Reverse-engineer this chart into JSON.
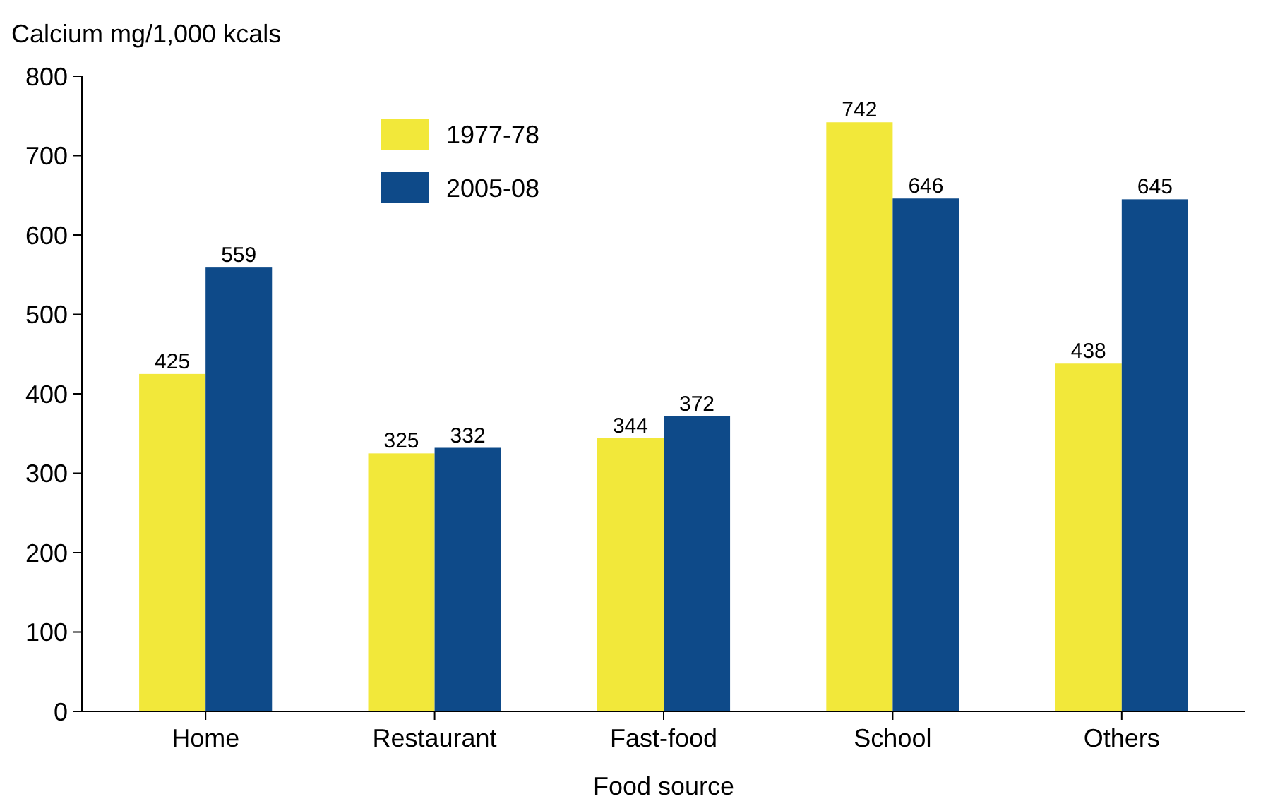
{
  "chart_data": {
    "type": "bar",
    "ylabel": "Calcium mg/1,000 kcals",
    "xlabel": "Food source",
    "categories": [
      "Home",
      "Restaurant",
      "Fast-food",
      "School",
      "Others"
    ],
    "series": [
      {
        "name": "1977-78",
        "color": "#f2e83a",
        "values": [
          425,
          325,
          344,
          742,
          438
        ]
      },
      {
        "name": "2005-08",
        "color": "#0e4a89",
        "values": [
          559,
          332,
          372,
          646,
          645
        ]
      }
    ],
    "ylim": [
      0,
      800
    ],
    "yticks": [
      0,
      100,
      200,
      300,
      400,
      500,
      600,
      700,
      800
    ],
    "data_labels": true,
    "legend": "top left",
    "grid": false
  }
}
